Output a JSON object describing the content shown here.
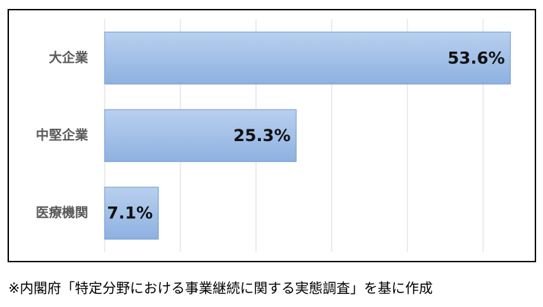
{
  "chart_data": {
    "type": "bar",
    "orientation": "horizontal",
    "categories": [
      "大企業",
      "中堅企業",
      "医療機関"
    ],
    "values": [
      53.6,
      25.3,
      7.1
    ],
    "value_labels": [
      "53.6%",
      "25.3%",
      "7.1%"
    ],
    "color": "#9dbce6",
    "xlim": [
      0,
      55
    ],
    "xticks": [
      0,
      10,
      20,
      30,
      40,
      50
    ],
    "grid": true,
    "note": "※内閣府「特定分野における事業継続に関する実態調査」を基に作成"
  }
}
